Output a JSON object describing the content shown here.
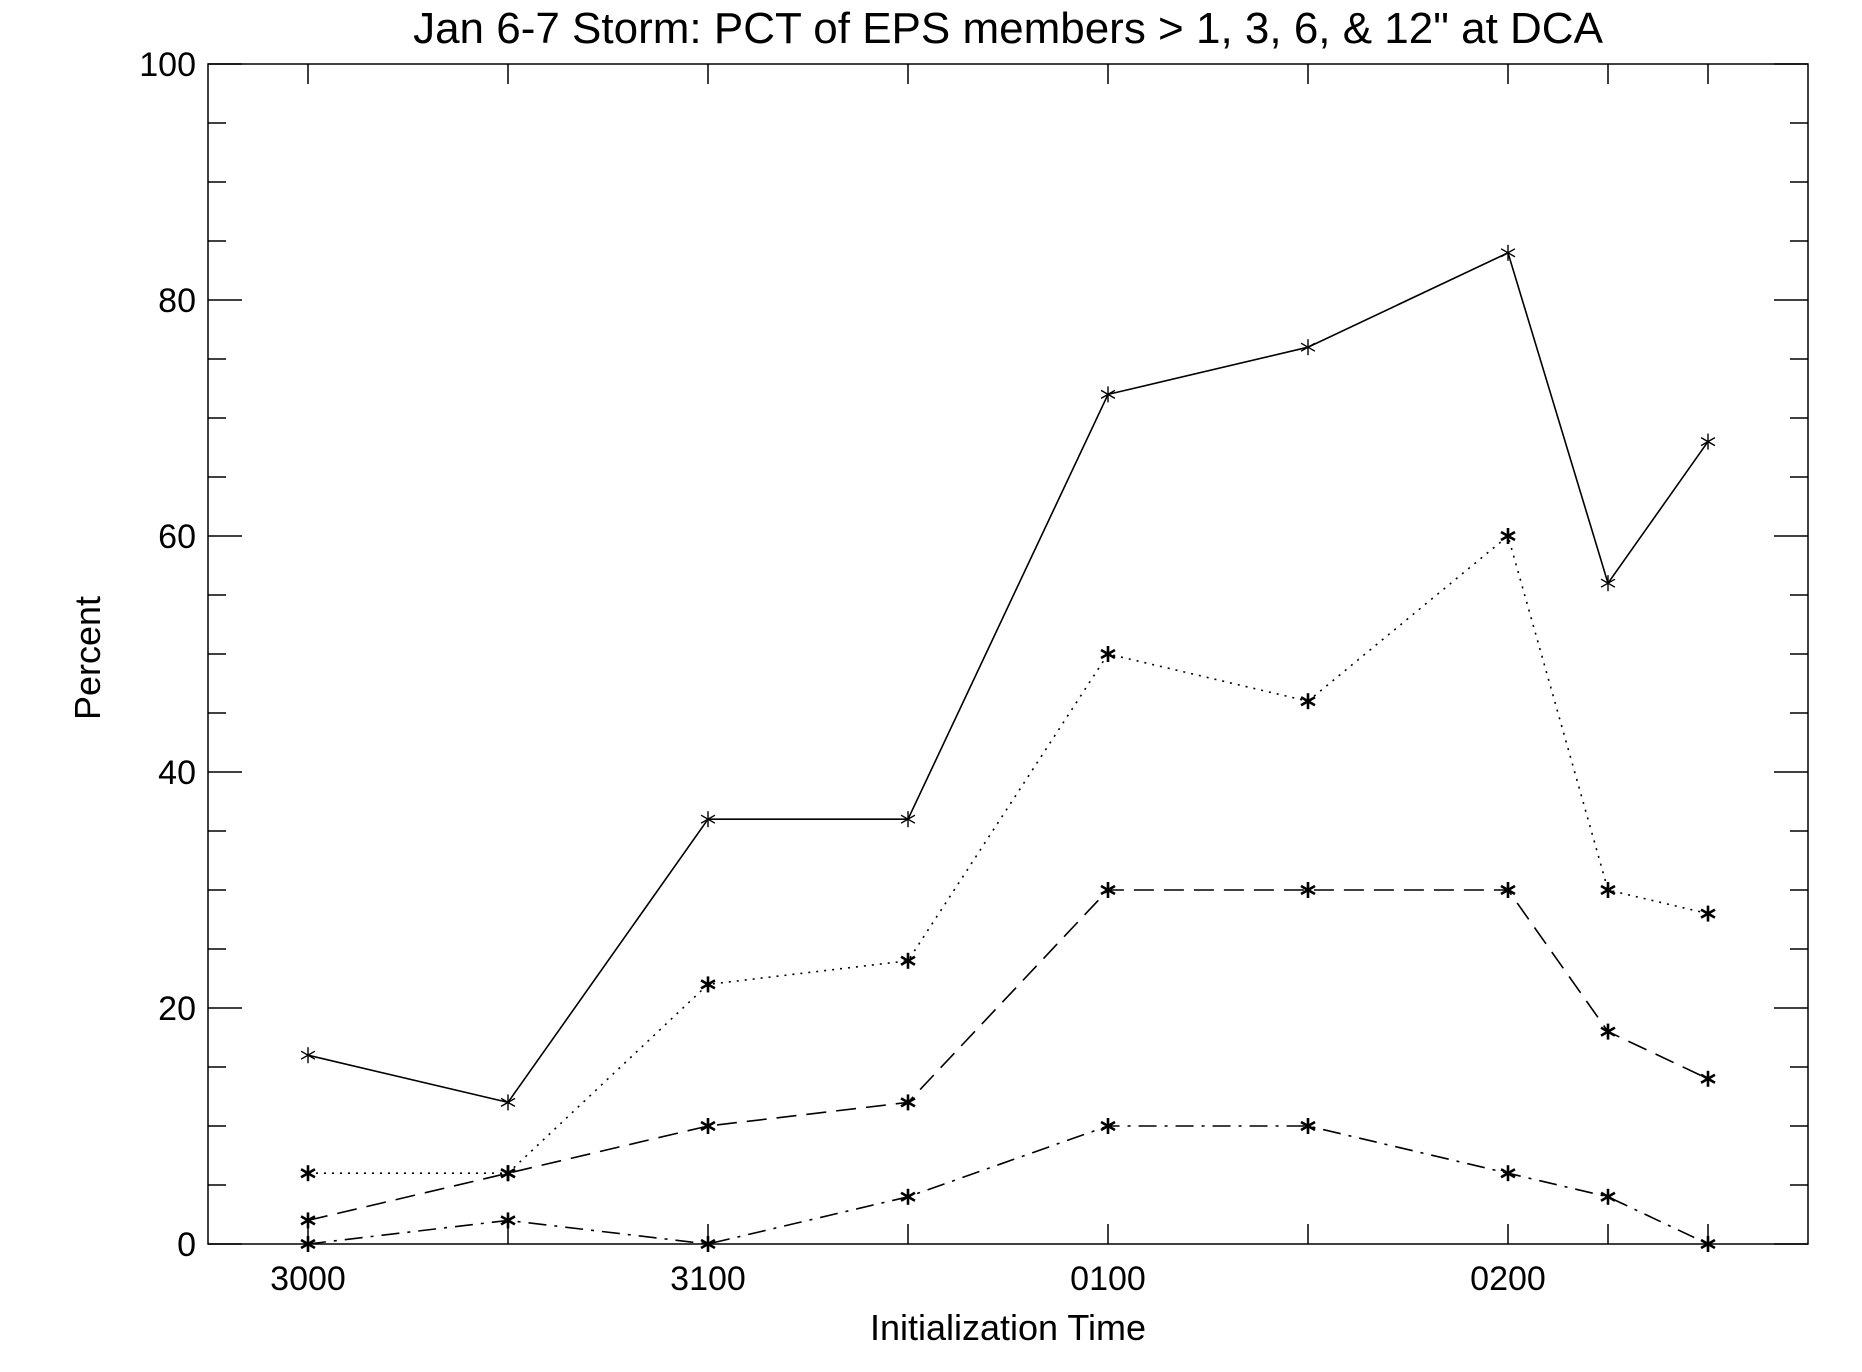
{
  "chart_data": {
    "type": "line",
    "title": "Jan 6-7 Storm: PCT of EPS members > 1, 3, 6, & 12\" at DCA",
    "xlabel": "Initialization Time",
    "ylabel": "Percent",
    "x": [
      0,
      0.5,
      1,
      1.5,
      2,
      2.5,
      3,
      3.25,
      3.5
    ],
    "xlim": [
      -0.25,
      3.75
    ],
    "xticks": [
      {
        "value": 0,
        "label": "3000"
      },
      {
        "value": 1,
        "label": "3100"
      },
      {
        "value": 2,
        "label": "0100"
      },
      {
        "value": 3,
        "label": "0200"
      }
    ],
    "ylim": [
      0,
      100
    ],
    "yticks": [
      0,
      20,
      40,
      60,
      80,
      100
    ],
    "yticks_minor_step": 5,
    "grid": false,
    "series": [
      {
        "values": [
          16,
          12,
          36,
          36,
          72,
          76,
          84,
          56,
          68
        ],
        "line_style": "solid",
        "marker": "asterisk"
      },
      {
        "values": [
          6,
          6,
          22,
          24,
          50,
          46,
          60,
          30,
          28
        ],
        "line_style": "dotted",
        "marker": "asterisk"
      },
      {
        "values": [
          2,
          6,
          10,
          12,
          30,
          30,
          30,
          18,
          14
        ],
        "line_style": "dashed",
        "marker": "asterisk"
      },
      {
        "values": [
          0,
          2,
          0,
          4,
          10,
          10,
          6,
          4,
          0
        ],
        "line_style": "dash-dot",
        "marker": "asterisk"
      }
    ],
    "line_color": "#000000"
  }
}
